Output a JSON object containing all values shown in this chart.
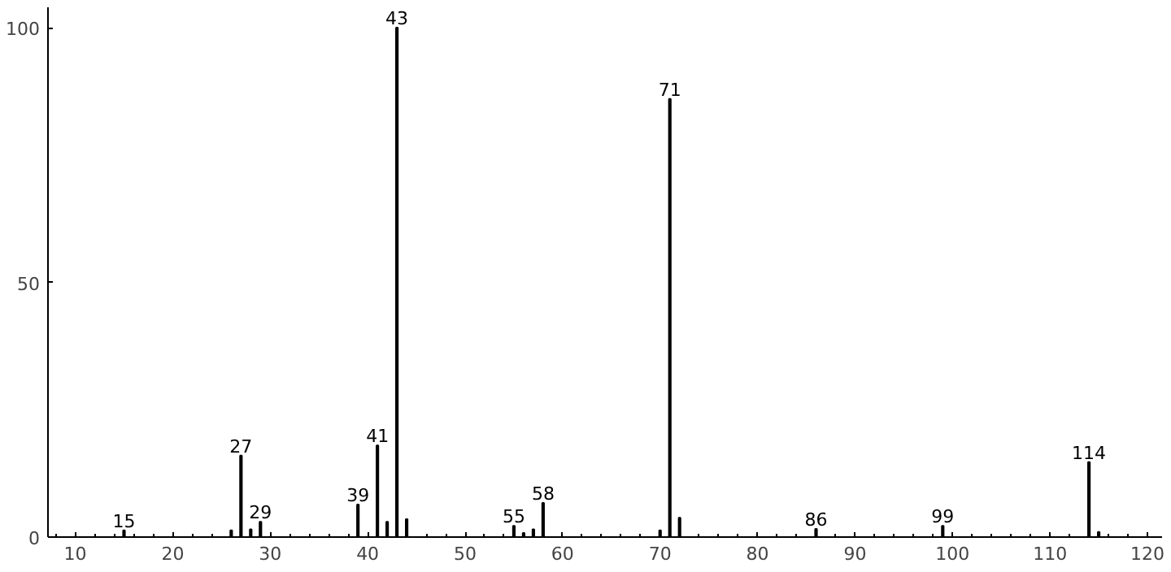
{
  "chart_data": {
    "type": "bar",
    "x": [
      15,
      26,
      27,
      28,
      29,
      39,
      41,
      42,
      43,
      44,
      55,
      56,
      57,
      58,
      70,
      71,
      72,
      86,
      99,
      114,
      115
    ],
    "values": [
      1.3,
      1.3,
      16,
      1.5,
      3,
      6.4,
      18,
      3,
      100,
      3.5,
      2.2,
      0.8,
      1.5,
      6.7,
      1.3,
      86,
      3.8,
      1.6,
      2.2,
      14.7,
      1
    ],
    "annotations": [
      {
        "text": "15",
        "x": 15,
        "y": 1.3
      },
      {
        "text": "27",
        "x": 27,
        "y": 16
      },
      {
        "text": "29",
        "x": 29,
        "y": 3
      },
      {
        "text": "39",
        "x": 39,
        "y": 6.4
      },
      {
        "text": "41",
        "x": 41,
        "y": 18
      },
      {
        "text": "43",
        "x": 43,
        "y": 100
      },
      {
        "text": "55",
        "x": 55,
        "y": 2.2
      },
      {
        "text": "58",
        "x": 58,
        "y": 6.7
      },
      {
        "text": "71",
        "x": 71,
        "y": 86
      },
      {
        "text": "86",
        "x": 86,
        "y": 1.6
      },
      {
        "text": "99",
        "x": 99,
        "y": 2.2
      },
      {
        "text": "114",
        "x": 114,
        "y": 14.7
      }
    ],
    "color": "#000000",
    "xlim": [
      7.2,
      121.5
    ],
    "ylim": [
      0,
      104
    ],
    "xticks": [
      10,
      20,
      30,
      40,
      50,
      60,
      70,
      80,
      90,
      100,
      110,
      120
    ],
    "yticks": [
      0,
      50,
      100
    ],
    "grid": false
  }
}
